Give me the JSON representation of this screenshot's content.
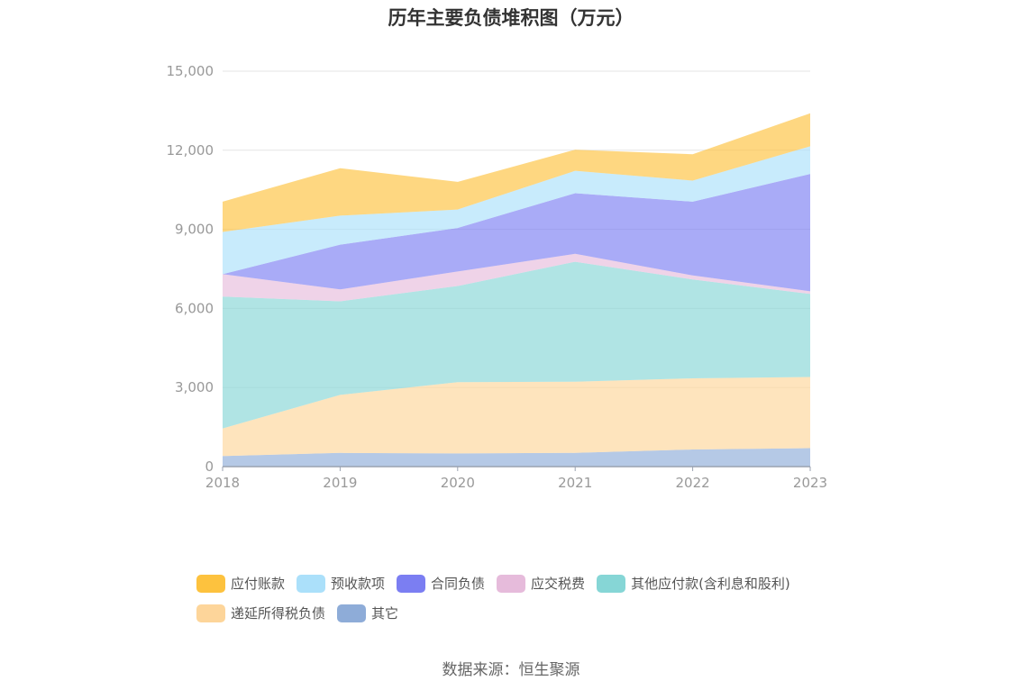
{
  "chart_data": {
    "type": "area",
    "stacked": true,
    "title": "历年主要负债堆积图（万元）",
    "source": "数据来源：恒生聚源",
    "categories": [
      "2018",
      "2019",
      "2020",
      "2021",
      "2022",
      "2023"
    ],
    "ylim": [
      0,
      15000
    ],
    "yticks": [
      0,
      3000,
      6000,
      9000,
      12000,
      15000
    ],
    "ytick_labels": [
      "0",
      "3,000",
      "6,000",
      "9,000",
      "12,000",
      "15,000"
    ],
    "series": [
      {
        "name": "其它",
        "color": "#8eacd8",
        "values": [
          400,
          520,
          500,
          520,
          650,
          700
        ]
      },
      {
        "name": "递延所得税负债",
        "color": "#fdd59a",
        "values": [
          1050,
          2200,
          2700,
          2700,
          2700,
          2700
        ]
      },
      {
        "name": "其他应付款(含利息和股利)",
        "color": "#86d6d6",
        "values": [
          5000,
          3550,
          3650,
          4550,
          3750,
          3150
        ]
      },
      {
        "name": "应交税费",
        "color": "#e6bbdb",
        "values": [
          850,
          450,
          550,
          300,
          150,
          100
        ]
      },
      {
        "name": "合同负债",
        "color": "#7b7ef2",
        "values": [
          0,
          1700,
          1650,
          2300,
          2800,
          4450
        ]
      },
      {
        "name": "预收款项",
        "color": "#abe0fa",
        "values": [
          1600,
          1100,
          700,
          850,
          800,
          1050
        ]
      },
      {
        "name": "应付账款",
        "color": "#fdc23e",
        "values": [
          1150,
          1800,
          1050,
          800,
          1000,
          1250
        ]
      }
    ],
    "legend_order": [
      "应付账款",
      "预收款项",
      "合同负债",
      "应交税费",
      "其他应付款(含利息和股利)",
      "递延所得税负债",
      "其它"
    ]
  }
}
